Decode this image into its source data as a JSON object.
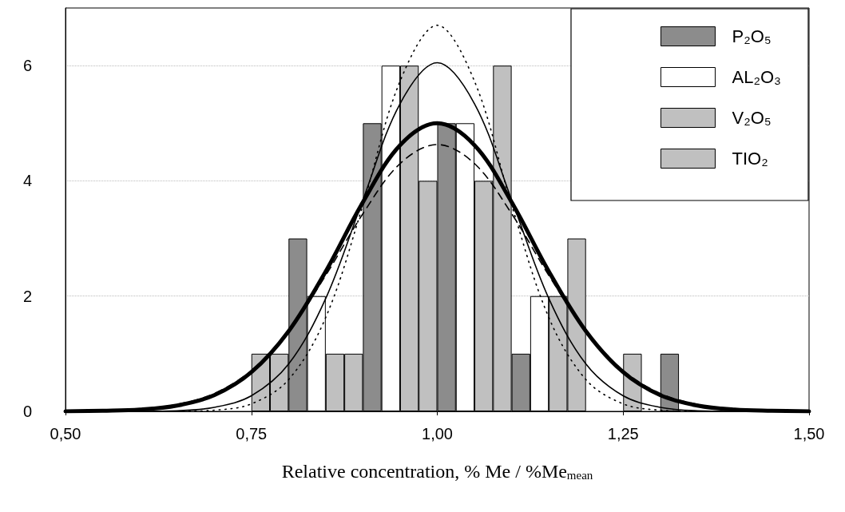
{
  "chart_data": {
    "type": "bar",
    "xlabel": "Relative concentration, % Me / %Me$_{mean}$",
    "xlim": [
      0.5,
      1.5
    ],
    "xticks": [
      {
        "value": 0.5,
        "label": "0,50"
      },
      {
        "value": 0.75,
        "label": "0,75"
      },
      {
        "value": 1.0,
        "label": "1,00"
      },
      {
        "value": 1.25,
        "label": "1,25"
      },
      {
        "value": 1.5,
        "label": "1,50"
      }
    ],
    "ylim": [
      0,
      7
    ],
    "yticks": [
      0,
      2,
      4,
      6
    ],
    "grid": "y",
    "legend": "top right",
    "series": [
      {
        "name": "P₂O₅",
        "color": "#8c8c8c",
        "x": [
          0.8125,
          0.9125,
          1.0125,
          1.1125,
          1.3125
        ],
        "values": [
          3,
          5,
          5,
          1,
          1
        ]
      },
      {
        "name": "AL₂O₃",
        "color": "#ffffff",
        "x": [
          0.8375,
          0.9375,
          1.0375,
          1.1375
        ],
        "values": [
          2,
          6,
          5,
          2
        ]
      },
      {
        "name": "V₂O₅",
        "color": "#c0c0c0",
        "x": [
          0.7625,
          0.8625,
          0.9625,
          1.0625,
          1.1625,
          1.2625
        ],
        "values": [
          1,
          1,
          6,
          4,
          2,
          1
        ]
      },
      {
        "name": "TIO₂",
        "color": "#c0c0c0",
        "x": [
          0.7875,
          0.8875,
          0.9875,
          1.0875,
          1.1875
        ],
        "values": [
          1,
          1,
          4,
          6,
          3
        ]
      },
      {
        "type": "line",
        "color": "#000000",
        "line_style": "dashed",
        "x": [
          0.55,
          0.6,
          0.65,
          0.7,
          0.75,
          0.8,
          0.85,
          0.9,
          0.95,
          1.0,
          1.05,
          1.1,
          1.15,
          1.2,
          1.25,
          1.3,
          1.35,
          1.4,
          1.45
        ],
        "values": [
          0.01,
          0.04,
          0.12,
          0.31,
          0.71,
          1.39,
          2.36,
          3.43,
          4.3,
          4.63,
          4.3,
          3.43,
          2.36,
          1.39,
          0.71,
          0.31,
          0.12,
          0.04,
          0.01
        ]
      },
      {
        "type": "line",
        "color": "#000000",
        "line_style": "dotted",
        "x": [
          0.65,
          0.7,
          0.75,
          0.8,
          0.85,
          0.9,
          0.95,
          1.0,
          1.05,
          1.1,
          1.15,
          1.2,
          1.25,
          1.3,
          1.35
        ],
        "values": [
          0,
          0.02,
          0.13,
          0.55,
          1.63,
          3.58,
          5.73,
          6.7,
          5.73,
          3.58,
          1.63,
          0.55,
          0.13,
          0.02,
          0
        ]
      },
      {
        "type": "line",
        "color": "#000000",
        "line_style": "solid",
        "x": [
          0.5,
          0.55,
          0.6,
          0.65,
          0.7,
          0.75,
          0.8,
          0.85,
          0.9,
          0.95,
          1.0,
          1.05,
          1.1,
          1.15,
          1.2,
          1.25,
          1.3,
          1.35,
          1.4,
          1.45,
          1.5
        ],
        "values": [
          0,
          0.01,
          0.03,
          0.1,
          0.28,
          0.68,
          1.39,
          2.43,
          3.63,
          4.62,
          5,
          4.62,
          3.63,
          2.43,
          1.39,
          0.68,
          0.28,
          0.1,
          0.03,
          0.01,
          0
        ]
      },
      {
        "type": "line",
        "color": "#000000",
        "line_style": "solid",
        "x": [
          0.6,
          0.65,
          0.7,
          0.75,
          0.8,
          0.85,
          0.9,
          0.95,
          1.0,
          1.05,
          1.1,
          1.15,
          1.2,
          1.25,
          1.3,
          1.35,
          1.4
        ],
        "values": [
          0,
          0.01,
          0.07,
          0.27,
          0.82,
          1.96,
          3.67,
          5.34,
          6.05,
          5.34,
          3.67,
          1.96,
          0.82,
          0.27,
          0.07,
          0.01,
          0
        ]
      }
    ]
  }
}
